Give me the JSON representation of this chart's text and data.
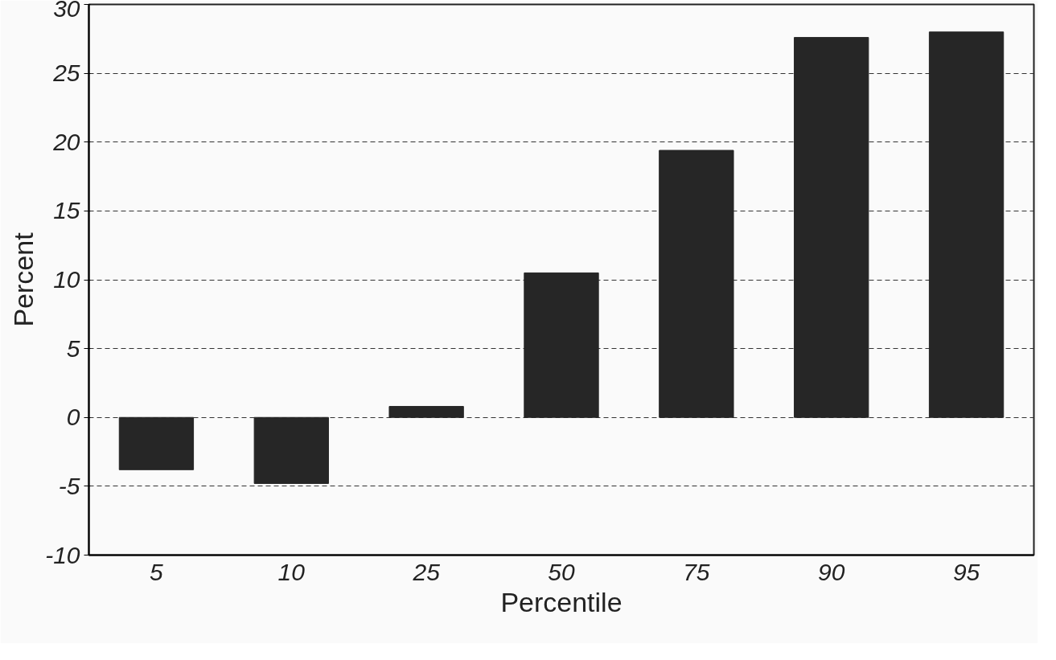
{
  "chart_data": {
    "type": "bar",
    "xlabel": "Percentile",
    "ylabel": "Percent",
    "categories": [
      "5",
      "10",
      "25",
      "50",
      "75",
      "90",
      "95"
    ],
    "values": [
      -3.8,
      -4.8,
      0.8,
      10.5,
      19.4,
      27.6,
      28.0
    ],
    "color": "#262626",
    "ylim": [
      -10,
      30
    ],
    "yticks": [
      -10,
      -5,
      0,
      5,
      10,
      15,
      20,
      25,
      30
    ],
    "grid": "y"
  }
}
